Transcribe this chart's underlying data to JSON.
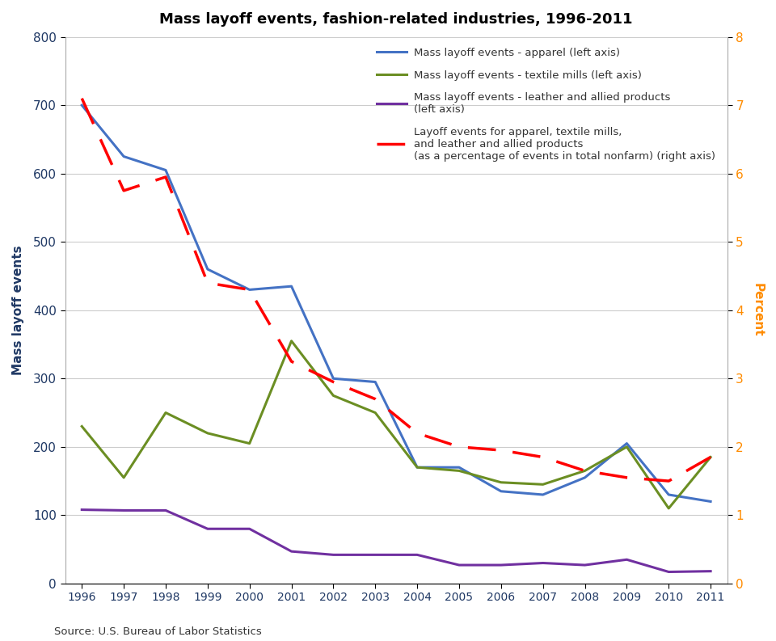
{
  "title": "Mass layoff events, fashion-related industries, 1996-2011",
  "years": [
    1996,
    1997,
    1998,
    1999,
    2000,
    2001,
    2002,
    2003,
    2004,
    2005,
    2006,
    2007,
    2008,
    2009,
    2010,
    2011
  ],
  "apparel": [
    700,
    625,
    605,
    460,
    430,
    435,
    300,
    295,
    170,
    170,
    135,
    130,
    155,
    205,
    130,
    120
  ],
  "textile": [
    230,
    155,
    250,
    220,
    205,
    355,
    275,
    250,
    170,
    165,
    148,
    145,
    165,
    200,
    110,
    185
  ],
  "leather": [
    108,
    107,
    107,
    80,
    80,
    47,
    42,
    42,
    42,
    27,
    27,
    30,
    27,
    35,
    17,
    18
  ],
  "pct_nonfarm": [
    7.1,
    5.75,
    5.95,
    4.4,
    4.3,
    3.25,
    2.95,
    2.7,
    2.2,
    2.0,
    1.95,
    1.85,
    1.65,
    1.55,
    1.5,
    1.85
  ],
  "apparel_color": "#4472C4",
  "textile_color": "#6B8E23",
  "leather_color": "#7030A0",
  "pct_color": "#FF0000",
  "ylabel_left": "Mass layoff events",
  "ylabel_right": "Percent",
  "ylim_left": [
    0,
    800
  ],
  "ylim_right": [
    0,
    8
  ],
  "yticks_left": [
    0,
    100,
    200,
    300,
    400,
    500,
    600,
    700,
    800
  ],
  "yticks_right": [
    0,
    1,
    2,
    3,
    4,
    5,
    6,
    7,
    8
  ],
  "source": "Source: U.S. Bureau of Labor Statistics",
  "legend_apparel": "Mass layoff events - apparel (left axis)",
  "legend_textile": "Mass layoff events - textile mills (left axis)",
  "legend_leather": "Mass layoff events - leather and allied products\n(left axis)",
  "legend_pct": "Layoff events for apparel, textile mills,\nand leather and allied products\n(as a percentage of events in total nonfarm) (right axis)",
  "bg_color": "#FFFFFF",
  "plot_bg_color": "#FFFFFF",
  "grid_color": "#CCCCCC",
  "axis_label_color_left": "#1F3864",
  "axis_label_color_right": "#FF8C00",
  "tick_color_left": "#1F3864",
  "tick_color_right": "#FF8C00"
}
